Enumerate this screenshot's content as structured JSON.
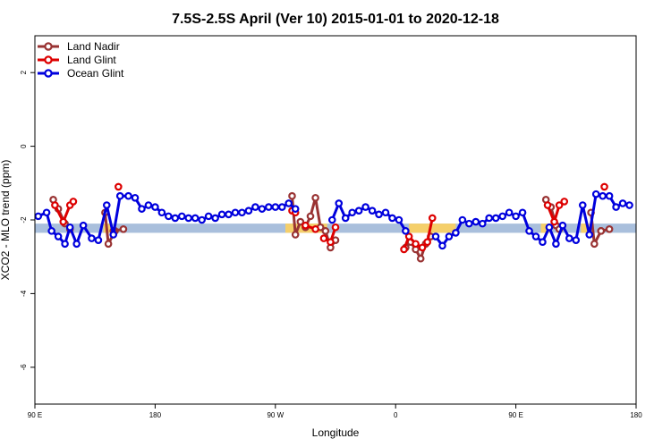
{
  "chart_data": {
    "type": "line",
    "title": "7.5S-2.5S April (Ver 10)   2015-01-01 to 2020-12-18",
    "xlabel": "Longitude",
    "ylabel": "XCO2 - MLO trend (ppm)",
    "xlim": [
      90,
      450
    ],
    "ylim": [
      -7,
      3
    ],
    "x_ticks": [
      {
        "value": 90,
        "label": "90 E"
      },
      {
        "value": 162,
        "label": "180"
      },
      {
        "value": 234,
        "label": "90 W"
      },
      {
        "value": 306,
        "label": "0"
      },
      {
        "value": 378,
        "label": "90 E"
      },
      {
        "value": 450,
        "label": "180"
      }
    ],
    "y_ticks": [
      {
        "value": 2,
        "label": "2"
      },
      {
        "value": 0,
        "label": "0"
      },
      {
        "value": -2,
        "label": "-2"
      },
      {
        "value": -4,
        "label": "-4"
      },
      {
        "value": -6,
        "label": "-6"
      }
    ],
    "legend_position": "top-left",
    "bands": [
      {
        "x": [
          90,
          450
        ],
        "y": [
          -2.35,
          -2.1
        ],
        "color": "#a9bfdc"
      },
      {
        "x": [
          131,
          136
        ],
        "y": [
          -2.35,
          -2.1
        ],
        "color": "#f5cf6a"
      },
      {
        "x": [
          240,
          265
        ],
        "y": [
          -2.35,
          -2.1
        ],
        "color": "#f5cf6a"
      },
      {
        "x": [
          314,
          342
        ],
        "y": [
          -2.35,
          -2.1
        ],
        "color": "#f5cf6a"
      },
      {
        "x": [
          393,
          398
        ],
        "y": [
          -2.35,
          -2.1
        ],
        "color": "#f5cf6a"
      },
      {
        "x": [
          417,
          422
        ],
        "y": [
          -2.35,
          -2.1
        ],
        "color": "#f5cf6a"
      }
    ],
    "series": [
      {
        "name": "Land Nadir",
        "color": "#993333",
        "segments": [
          [
            [
              101,
              -1.45
            ],
            [
              104,
              -1.7
            ],
            [
              108,
              -2.1
            ],
            [
              111,
              -2.25
            ]
          ],
          [
            [
              132,
              -1.8
            ],
            [
              134,
              -2.65
            ],
            [
              138,
              -2.3
            ]
          ],
          [
            [
              137,
              -2.3
            ],
            [
              143,
              -2.25
            ]
          ],
          [
            [
              244,
              -1.35
            ],
            [
              246,
              -2.4
            ],
            [
              249,
              -2.05
            ],
            [
              252,
              -2.2
            ],
            [
              255,
              -1.9
            ],
            [
              258,
              -1.4
            ],
            [
              261,
              -2.2
            ],
            [
              264,
              -2.3
            ],
            [
              267,
              -2.75
            ],
            [
              270,
              -2.55
            ]
          ],
          [
            [
              312,
              -2.75
            ],
            [
              315,
              -2.6
            ],
            [
              318,
              -2.8
            ],
            [
              321,
              -3.05
            ],
            [
              324,
              -2.65
            ],
            [
              327,
              -2.45
            ]
          ],
          [
            [
              396,
              -1.45
            ],
            [
              399,
              -1.65
            ],
            [
              402,
              -2.15
            ],
            [
              404,
              -2.25
            ]
          ],
          [
            [
              423,
              -1.8
            ],
            [
              425,
              -2.65
            ],
            [
              429,
              -2.3
            ]
          ],
          [
            [
              429,
              -2.3
            ],
            [
              434,
              -2.25
            ]
          ]
        ]
      },
      {
        "name": "Land Glint",
        "color": "#dd0000",
        "segments": [
          [
            [
              102,
              -1.6
            ],
            [
              107,
              -2.05
            ],
            [
              111,
              -1.6
            ],
            [
              113,
              -1.5
            ]
          ],
          [
            [
              140,
              -1.1
            ]
          ],
          [
            [
              244,
              -1.75
            ],
            [
              246,
              -1.8
            ]
          ],
          [
            [
              252,
              -2.15
            ],
            [
              258,
              -2.25
            ]
          ],
          [
            [
              263,
              -2.5
            ],
            [
              267,
              -2.6
            ],
            [
              270,
              -2.2
            ]
          ],
          [
            [
              311,
              -2.8
            ],
            [
              314,
              -2.45
            ],
            [
              318,
              -2.65
            ],
            [
              322,
              -2.75
            ],
            [
              325,
              -2.6
            ],
            [
              328,
              -1.95
            ]
          ],
          [
            [
              397,
              -1.6
            ],
            [
              401,
              -2.05
            ],
            [
              404,
              -1.6
            ],
            [
              407,
              -1.5
            ]
          ],
          [
            [
              431,
              -1.1
            ]
          ]
        ]
      },
      {
        "name": "Ocean Glint",
        "color": "#0000dd",
        "segments": [
          [
            [
              92,
              -1.9
            ],
            [
              97,
              -1.8
            ],
            [
              100,
              -2.3
            ],
            [
              104,
              -2.45
            ],
            [
              108,
              -2.65
            ],
            [
              111,
              -2.2
            ],
            [
              115,
              -2.65
            ],
            [
              119,
              -2.15
            ],
            [
              124,
              -2.5
            ],
            [
              128,
              -2.55
            ],
            [
              133,
              -1.6
            ],
            [
              137,
              -2.4
            ],
            [
              141,
              -1.35
            ],
            [
              146,
              -1.35
            ],
            [
              150,
              -1.4
            ],
            [
              154,
              -1.7
            ],
            [
              158,
              -1.6
            ],
            [
              162,
              -1.65
            ],
            [
              166,
              -1.8
            ],
            [
              170,
              -1.9
            ],
            [
              174,
              -1.95
            ],
            [
              178,
              -1.9
            ],
            [
              182,
              -1.95
            ],
            [
              186,
              -1.95
            ],
            [
              190,
              -2.0
            ],
            [
              194,
              -1.9
            ],
            [
              198,
              -1.95
            ],
            [
              202,
              -1.85
            ],
            [
              206,
              -1.85
            ],
            [
              210,
              -1.8
            ],
            [
              214,
              -1.8
            ],
            [
              218,
              -1.75
            ],
            [
              222,
              -1.65
            ],
            [
              226,
              -1.7
            ],
            [
              230,
              -1.65
            ],
            [
              234,
              -1.65
            ],
            [
              238,
              -1.65
            ],
            [
              242,
              -1.55
            ],
            [
              246,
              -1.7
            ]
          ],
          [
            [
              268,
              -2.0
            ],
            [
              272,
              -1.55
            ],
            [
              276,
              -1.95
            ],
            [
              280,
              -1.8
            ],
            [
              284,
              -1.75
            ],
            [
              288,
              -1.65
            ],
            [
              292,
              -1.75
            ],
            [
              296,
              -1.85
            ],
            [
              300,
              -1.8
            ],
            [
              304,
              -1.95
            ],
            [
              308,
              -2.0
            ],
            [
              312,
              -2.3
            ]
          ],
          [
            [
              330,
              -2.45
            ],
            [
              334,
              -2.7
            ],
            [
              338,
              -2.45
            ],
            [
              342,
              -2.35
            ],
            [
              346,
              -2.0
            ],
            [
              350,
              -2.1
            ],
            [
              354,
              -2.05
            ],
            [
              358,
              -2.1
            ],
            [
              362,
              -1.95
            ],
            [
              366,
              -1.95
            ],
            [
              370,
              -1.9
            ],
            [
              374,
              -1.8
            ],
            [
              378,
              -1.9
            ],
            [
              382,
              -1.8
            ],
            [
              386,
              -2.3
            ],
            [
              390,
              -2.45
            ],
            [
              394,
              -2.6
            ],
            [
              398,
              -2.2
            ],
            [
              402,
              -2.65
            ],
            [
              406,
              -2.15
            ],
            [
              410,
              -2.5
            ],
            [
              414,
              -2.55
            ],
            [
              418,
              -1.6
            ],
            [
              422,
              -2.4
            ],
            [
              426,
              -1.3
            ],
            [
              430,
              -1.35
            ],
            [
              434,
              -1.35
            ],
            [
              438,
              -1.65
            ],
            [
              442,
              -1.55
            ],
            [
              446,
              -1.6
            ]
          ]
        ]
      }
    ]
  }
}
